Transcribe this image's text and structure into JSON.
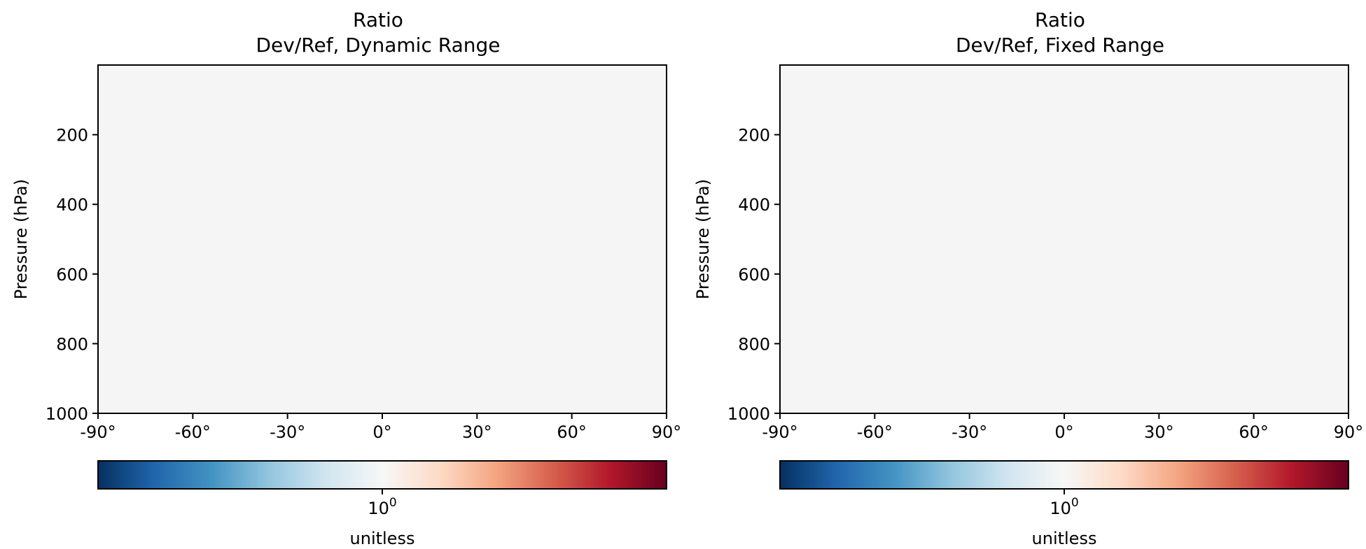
{
  "chart_data": [
    {
      "type": "heatmap",
      "title": "Ratio",
      "subtitle": "Dev/Ref, Dynamic Range",
      "ylabel": "Pressure (hPa)",
      "xlabel": "",
      "x_ticks": [
        {
          "value": -90,
          "label": "-90°"
        },
        {
          "value": -60,
          "label": "-60°"
        },
        {
          "value": -30,
          "label": "-30°"
        },
        {
          "value": 0,
          "label": "0°"
        },
        {
          "value": 30,
          "label": "30°"
        },
        {
          "value": 60,
          "label": "60°"
        },
        {
          "value": 90,
          "label": "90°"
        }
      ],
      "y_ticks": [
        {
          "value": 200,
          "label": "200"
        },
        {
          "value": 400,
          "label": "400"
        },
        {
          "value": 600,
          "label": "600"
        },
        {
          "value": 800,
          "label": "800"
        },
        {
          "value": 1000,
          "label": "1000"
        }
      ],
      "xlim": [
        -90,
        90
      ],
      "ylim": [
        1000,
        0
      ],
      "field_value": 1,
      "field_color": "#f5f5f5",
      "colorbar": {
        "colormap": "RdBu_r",
        "scale": "log",
        "tick_label_base": "10",
        "tick_label_exp": "0",
        "label": "unitless"
      }
    },
    {
      "type": "heatmap",
      "title": "Ratio",
      "subtitle": "Dev/Ref, Fixed Range",
      "ylabel": "Pressure (hPa)",
      "xlabel": "",
      "x_ticks": [
        {
          "value": -90,
          "label": "-90°"
        },
        {
          "value": -60,
          "label": "-60°"
        },
        {
          "value": -30,
          "label": "-30°"
        },
        {
          "value": 0,
          "label": "0°"
        },
        {
          "value": 30,
          "label": "30°"
        },
        {
          "value": 60,
          "label": "60°"
        },
        {
          "value": 90,
          "label": "90°"
        }
      ],
      "y_ticks": [
        {
          "value": 200,
          "label": "200"
        },
        {
          "value": 400,
          "label": "400"
        },
        {
          "value": 600,
          "label": "600"
        },
        {
          "value": 800,
          "label": "800"
        },
        {
          "value": 1000,
          "label": "1000"
        }
      ],
      "xlim": [
        -90,
        90
      ],
      "ylim": [
        1000,
        0
      ],
      "field_value": 1,
      "field_color": "#f5f5f5",
      "colorbar": {
        "colormap": "RdBu_r",
        "scale": "log",
        "tick_label_base": "10",
        "tick_label_exp": "0",
        "label": "unitless"
      }
    }
  ],
  "colormap_stops": [
    "#053061",
    "#2166ac",
    "#4393c3",
    "#92c5de",
    "#d1e5f0",
    "#f7f7f7",
    "#fddbc7",
    "#f4a582",
    "#d6604d",
    "#b2182b",
    "#67001f"
  ]
}
